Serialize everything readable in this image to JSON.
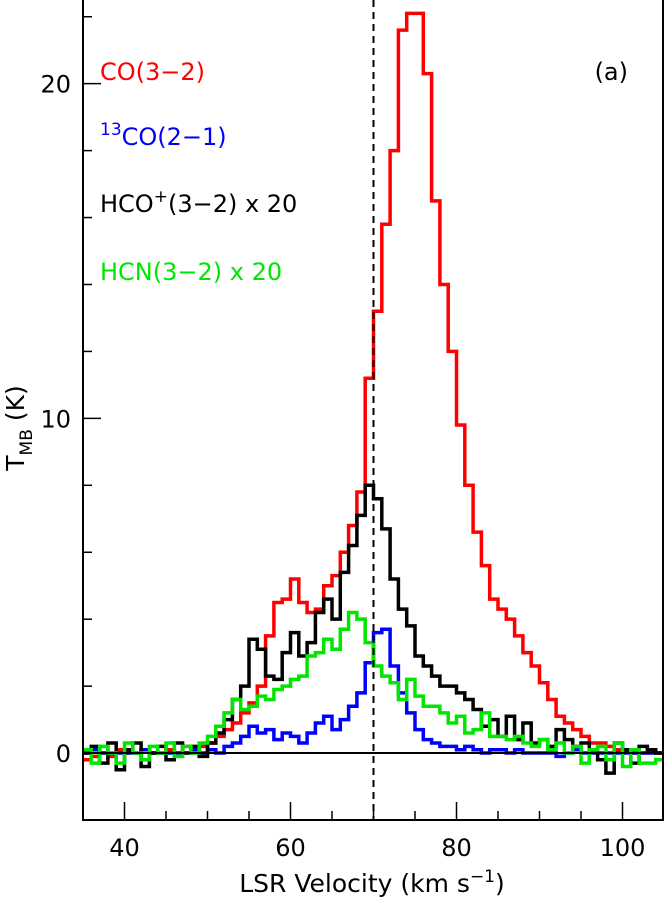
{
  "chart_data": {
    "type": "line",
    "style": "step",
    "panel_label": "(a)",
    "xlabel": {
      "base": "LSR Velocity (km s",
      "exp": "−1",
      "close": ")"
    },
    "ylabel": {
      "base": "T",
      "sub": "MB",
      "unit": " (K)"
    },
    "xlim": [
      35,
      105
    ],
    "ylim": [
      -2,
      22.5
    ],
    "x_ticks": [
      40,
      60,
      80,
      100
    ],
    "x_tick_labels": [
      "40",
      "60",
      "80",
      "100"
    ],
    "y_ticks": [
      0,
      10,
      20
    ],
    "y_tick_labels": [
      "0",
      "10",
      "20"
    ],
    "x_minor_step": 5,
    "y_minor_step": 2,
    "vline": {
      "x": 70,
      "style": "dashed",
      "color": "#000000"
    },
    "hline": {
      "y": 0,
      "color": "#000000"
    },
    "bin_width": 1,
    "x_start": 35,
    "legend": {
      "placement": "top-left",
      "entries": [
        {
          "series": 0,
          "pre": "",
          "sup": "",
          "main": "CO(3−2)",
          "sup2": "",
          "post": ""
        },
        {
          "series": 1,
          "pre": "",
          "sup": "13",
          "main": "CO(2−1)",
          "sup2": "",
          "post": ""
        },
        {
          "series": 2,
          "pre": "",
          "sup": "",
          "main": "HCO",
          "sup2": "+",
          "post": "(3−2) x 20"
        },
        {
          "series": 3,
          "pre": "",
          "sup": "",
          "main": "HCN(3−2) x 20",
          "sup2": "",
          "post": ""
        }
      ]
    },
    "series": [
      {
        "name": "CO(3−2)",
        "color": "#ff0000",
        "values": [
          -0.2,
          -0.1,
          0,
          -0.1,
          0.1,
          0,
          0,
          0.1,
          0,
          0,
          0.1,
          0,
          0.2,
          0.1,
          0.2,
          0.3,
          0.5,
          0.7,
          0.9,
          1.2,
          1.5,
          2.0,
          3.5,
          4.5,
          4.6,
          5.2,
          4.5,
          4.2,
          4.3,
          5.0,
          5.3,
          6.0,
          6.8,
          7.8,
          11.2,
          13.2,
          15.8,
          18.0,
          21.6,
          22.1,
          22.1,
          20.3,
          16.5,
          14.0,
          12.0,
          9.8,
          8.0,
          6.6,
          5.6,
          4.6,
          4.3,
          4.0,
          3.5,
          3.0,
          2.6,
          2.1,
          1.6,
          1.1,
          0.9,
          0.7,
          0.5,
          0.3,
          0.3,
          0.2,
          0.1,
          0.1,
          0,
          0,
          0.1,
          0,
          0
        ]
      },
      {
        "name": "13CO(2−1)",
        "color": "#0000ff",
        "values": [
          0,
          0.1,
          0,
          0,
          0,
          0,
          0,
          0.1,
          0,
          0,
          0,
          0,
          0,
          0.1,
          0,
          0.1,
          0,
          0.2,
          0.3,
          0.5,
          0.8,
          0.6,
          0.7,
          0.4,
          0.6,
          0.5,
          0.3,
          0.6,
          0.9,
          1.1,
          0.7,
          1.0,
          1.4,
          1.8,
          2.7,
          3.6,
          3.7,
          2.6,
          1.8,
          1.2,
          0.7,
          0.4,
          0.3,
          0.2,
          0.2,
          0.1,
          0.2,
          0.1,
          0,
          0.1,
          0.1,
          0,
          0.1,
          0,
          0,
          0,
          0,
          -0.1,
          0,
          0.1,
          0,
          0,
          0,
          0,
          0,
          0,
          0,
          0,
          0,
          0
        ]
      },
      {
        "name": "HCO+(3−2) x 20",
        "color": "#000000",
        "values": [
          0,
          0.2,
          -0.3,
          0.3,
          -0.5,
          0.1,
          0.3,
          -0.4,
          0,
          0.2,
          -0.2,
          0.3,
          0,
          0.2,
          -0.1,
          0.3,
          0.6,
          1.0,
          1.6,
          2.0,
          3.4,
          3.1,
          2.3,
          2.2,
          3.0,
          3.6,
          2.9,
          3.3,
          4.2,
          4.6,
          4.0,
          5.4,
          6.2,
          7.1,
          8.0,
          7.6,
          6.7,
          5.2,
          4.3,
          3.8,
          2.9,
          2.6,
          2.3,
          2.0,
          2.0,
          1.8,
          1.6,
          1.3,
          0.8,
          1.0,
          0.5,
          1.1,
          0.4,
          0.9,
          0.3,
          0.4,
          0.2,
          0.7,
          0.4,
          0.2,
          0.3,
          0.1,
          -0.2,
          -0.6,
          0.3,
          0.1,
          -0.3,
          0.2,
          0.1,
          0
        ]
      },
      {
        "name": "HCN(3−2) x 20",
        "color": "#00e600",
        "values": [
          0.1,
          -0.3,
          0.2,
          0,
          -0.3,
          0.3,
          0,
          -0.2,
          0.2,
          0,
          0.3,
          -0.1,
          0.2,
          0,
          0.3,
          0.5,
          0.8,
          1.2,
          1.6,
          1.3,
          1.4,
          1.7,
          1.6,
          1.9,
          2.0,
          2.2,
          2.3,
          2.9,
          3.0,
          3.4,
          3.1,
          3.7,
          4.2,
          4.0,
          3.3,
          2.6,
          2.3,
          2.1,
          1.6,
          2.2,
          1.7,
          1.4,
          1.4,
          1.2,
          0.9,
          1.1,
          0.6,
          0.7,
          1.2,
          0.5,
          0.5,
          0.4,
          0.5,
          0.3,
          0.2,
          0.4,
          0.1,
          0.3,
          0,
          0.2,
          -0.3,
          0.1,
          0.2,
          -0.2,
          0.3,
          -0.4,
          0.1,
          -0.3,
          -0.3,
          -0.2
        ]
      }
    ]
  }
}
